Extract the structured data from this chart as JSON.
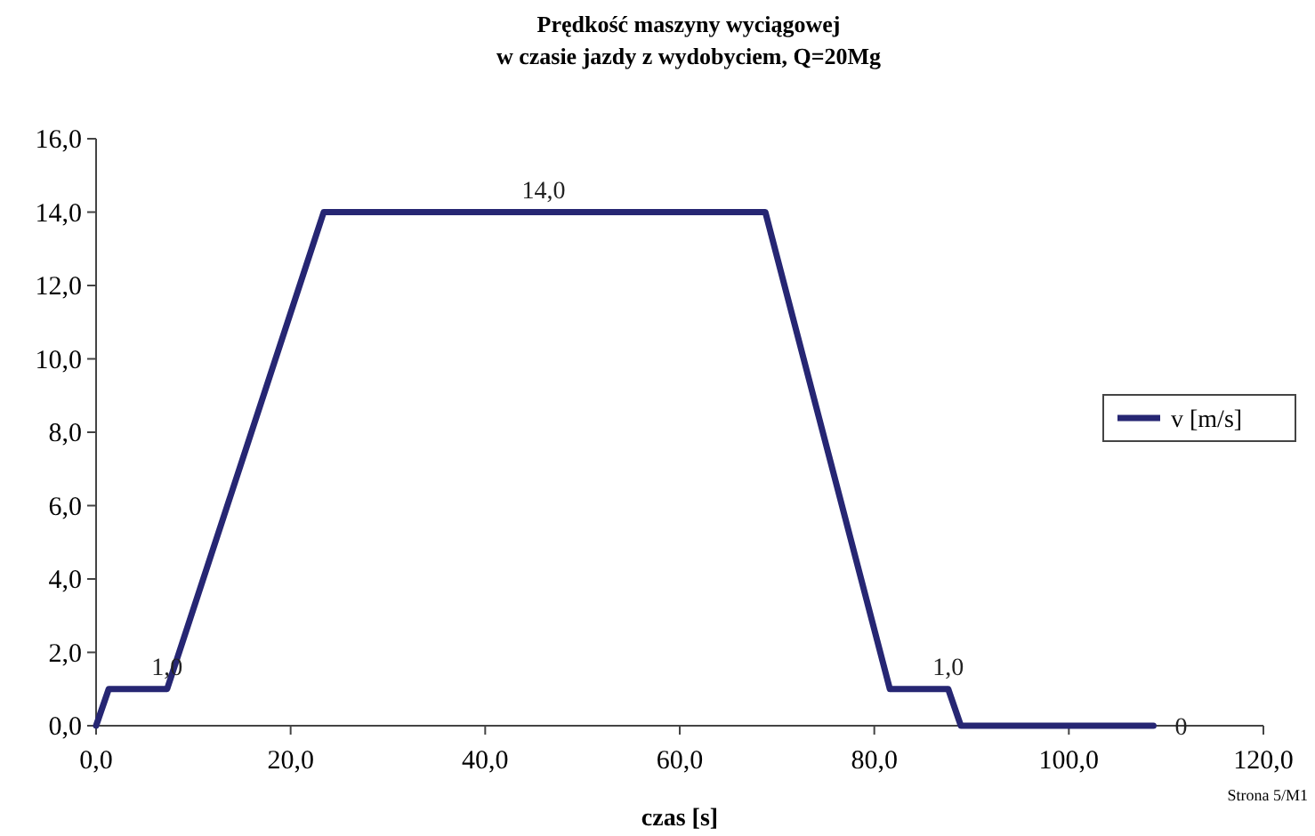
{
  "chart_data": {
    "type": "line",
    "title": "Prędkość maszyny wyciągowej\nw czasie jazdy z wydobyciem, Q=20Mg",
    "xlabel": "czas [s]",
    "x": [
      0,
      1.3,
      7.3,
      23.4,
      46,
      68.8,
      81.6,
      87.6,
      88.9,
      108.7
    ],
    "series": [
      {
        "name": "v [m/s]",
        "color": "#262673",
        "values": [
          0,
          1,
          1,
          14,
          14,
          14,
          1,
          1,
          0,
          0
        ],
        "value_labels": [
          null,
          null,
          "1,0",
          null,
          "14,0",
          null,
          null,
          "1,0",
          null,
          "0"
        ]
      }
    ],
    "xlim": [
      0,
      120
    ],
    "xticks": [
      {
        "value": 0,
        "label": "0,0"
      },
      {
        "value": 20,
        "label": "20,0"
      },
      {
        "value": 40,
        "label": "40,0"
      },
      {
        "value": 60,
        "label": "60,0"
      },
      {
        "value": 80,
        "label": "80,0"
      },
      {
        "value": 100,
        "label": "100,0"
      },
      {
        "value": 120,
        "label": "120,0"
      }
    ],
    "ylim": [
      0,
      16
    ],
    "yticks": [
      {
        "value": 0,
        "label": "0,0"
      },
      {
        "value": 2,
        "label": "2,0"
      },
      {
        "value": 4,
        "label": "4,0"
      },
      {
        "value": 6,
        "label": "6,0"
      },
      {
        "value": 8,
        "label": "8,0"
      },
      {
        "value": 10,
        "label": "10,0"
      },
      {
        "value": 12,
        "label": "12,0"
      },
      {
        "value": 14,
        "label": "14,0"
      },
      {
        "value": 16,
        "label": "16,0"
      }
    ],
    "grid": false,
    "legend": "right",
    "marker": "none",
    "line_style": "solid",
    "annotations": [
      "Strona 5/M1"
    ]
  }
}
